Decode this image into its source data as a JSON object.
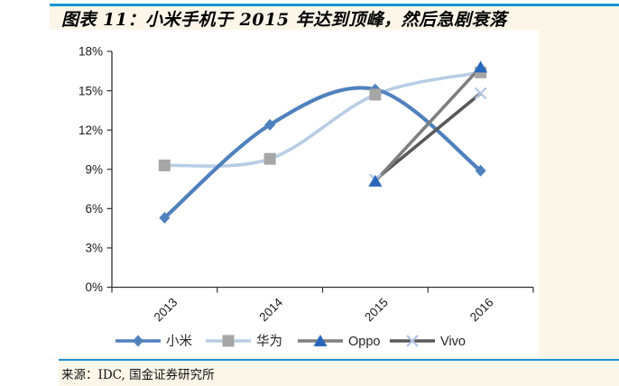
{
  "figure": {
    "source_label": "来源：IDC, 国金证券研究所",
    "accent_color": "#1993D2",
    "band_background": "#FCF6E9"
  },
  "chart_data": {
    "type": "line",
    "title": "图表 11：小米手机于 2015 年达到顶峰，然后急剧衰落",
    "categories": [
      "2013",
      "2014",
      "2015",
      "2016"
    ],
    "xlabel": "",
    "ylabel": "",
    "ylim": [
      0,
      18
    ],
    "ytick_labels": [
      "0%",
      "3%",
      "6%",
      "9%",
      "12%",
      "15%",
      "18%"
    ],
    "grid": false,
    "legend_position": "bottom",
    "series": [
      {
        "name": "小米",
        "values": [
          5.3,
          12.4,
          15.1,
          8.9
        ],
        "line_color": "#4F81BD",
        "marker": "diamond",
        "marker_color": "#4F81BD",
        "smooth": true
      },
      {
        "name": "华为",
        "values": [
          9.3,
          9.8,
          14.7,
          16.4
        ],
        "line_color": "#B9CDE5",
        "marker": "square",
        "marker_color": "#A6A6A6",
        "smooth": true
      },
      {
        "name": "Oppo",
        "values": [
          null,
          null,
          8.1,
          16.8
        ],
        "line_color": "#7F7F7F",
        "marker": "triangle",
        "marker_color": "#2A67BE",
        "smooth": false
      },
      {
        "name": "Vivo",
        "values": [
          null,
          null,
          8.2,
          14.8
        ],
        "line_color": "#595959",
        "marker": "x",
        "marker_color": "#B4C7E7",
        "smooth": false
      }
    ]
  }
}
